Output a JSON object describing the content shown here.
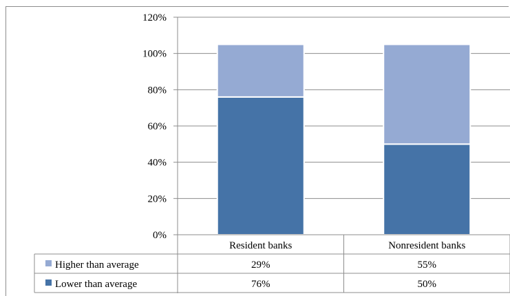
{
  "chart_data": {
    "type": "bar",
    "stacked": true,
    "categories": [
      "Resident banks",
      "Nonresident banks"
    ],
    "series": [
      {
        "name": "Lower than average",
        "values": [
          76,
          50
        ],
        "labels": [
          "76%",
          "50%"
        ],
        "color": "#4573a7"
      },
      {
        "name": "Higher than average",
        "values": [
          29,
          55
        ],
        "labels": [
          "29%",
          "55%"
        ],
        "color": "#95aad3"
      }
    ],
    "ylim": [
      0,
      120
    ],
    "yticks": [
      "0%",
      "20%",
      "40%",
      "60%",
      "80%",
      "100%",
      "120%"
    ],
    "grid": true,
    "legend": "data-table"
  }
}
